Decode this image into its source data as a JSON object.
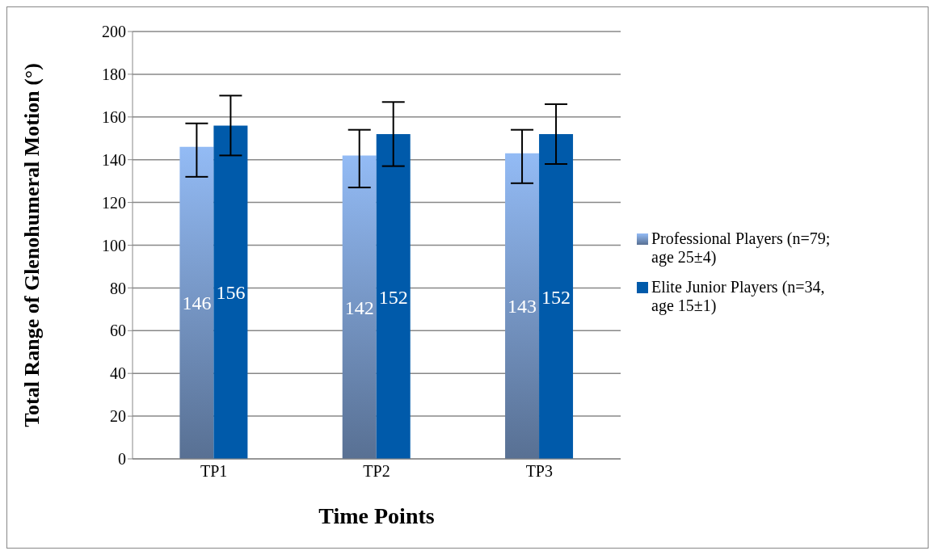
{
  "chart_data": {
    "type": "bar",
    "xlabel": "Time Points",
    "ylabel": "Total Range of Glenohumeral Motion (°)",
    "categories": [
      "TP1",
      "TP2",
      "TP3"
    ],
    "series": [
      {
        "name": "Professional Players (n=79; age 25±4)",
        "color": "#93bbf5",
        "values": [
          146,
          142,
          143
        ],
        "errors": [
          [
            132,
            157
          ],
          [
            127,
            154
          ],
          [
            129,
            154
          ]
        ]
      },
      {
        "name": "Elite Junior Players (n=34, age 15±1)",
        "color": "#005aaa",
        "values": [
          156,
          152,
          152
        ],
        "errors": [
          [
            142,
            170
          ],
          [
            137,
            167
          ],
          [
            138,
            166
          ]
        ]
      }
    ],
    "ylim": [
      0,
      200
    ],
    "yticks": [
      0,
      20,
      40,
      60,
      80,
      100,
      120,
      140,
      160,
      180,
      200
    ],
    "grid": "y",
    "legend": "right",
    "data_labels": true
  }
}
